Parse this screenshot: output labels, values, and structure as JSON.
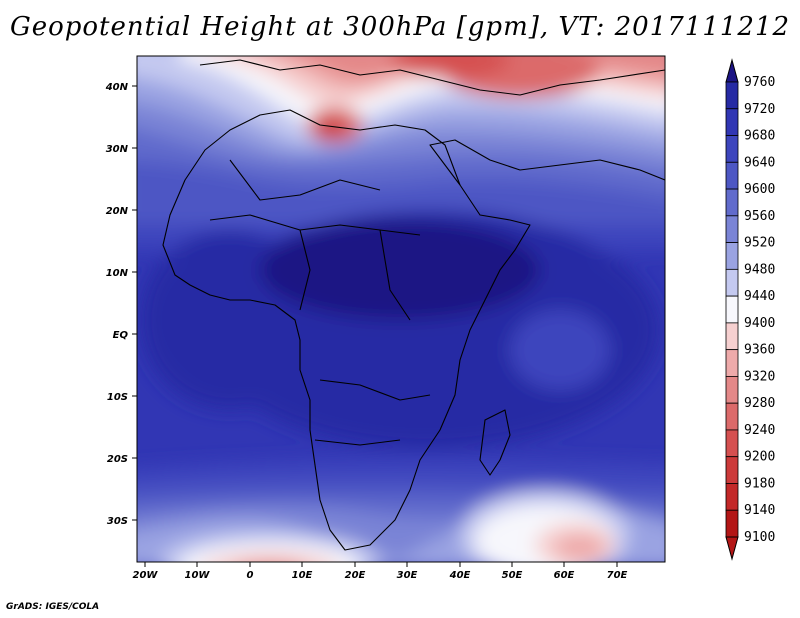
{
  "title": "Geopotential Height at 300hPa [gpm], VT: 2017111212",
  "credit": "GrADS: IGES/COLA",
  "map": {
    "lat_labels": [
      "40N",
      "30N",
      "20N",
      "10N",
      "EQ",
      "10S",
      "20S",
      "30S"
    ],
    "lon_labels": [
      "20W",
      "10W",
      "0",
      "10E",
      "20E",
      "30E",
      "40E",
      "50E",
      "60E",
      "70E"
    ]
  },
  "colorbar": {
    "levels": [
      "9760",
      "9720",
      "9680",
      "9640",
      "9600",
      "9560",
      "9520",
      "9480",
      "9440",
      "9400",
      "9360",
      "9320",
      "9280",
      "9240",
      "9200",
      "9180",
      "9140",
      "9100"
    ],
    "colors": [
      "#1c1484",
      "#262aa4",
      "#3136b4",
      "#3d45bd",
      "#4d57c4",
      "#616bcc",
      "#7a84d6",
      "#9aa3e2",
      "#c4c9f0",
      "#f7f7fc",
      "#f6d0d0",
      "#eeaaaa",
      "#e48888",
      "#dc6a6a",
      "#d55050",
      "#cc3a3a",
      "#c32828",
      "#b31616"
    ]
  }
}
